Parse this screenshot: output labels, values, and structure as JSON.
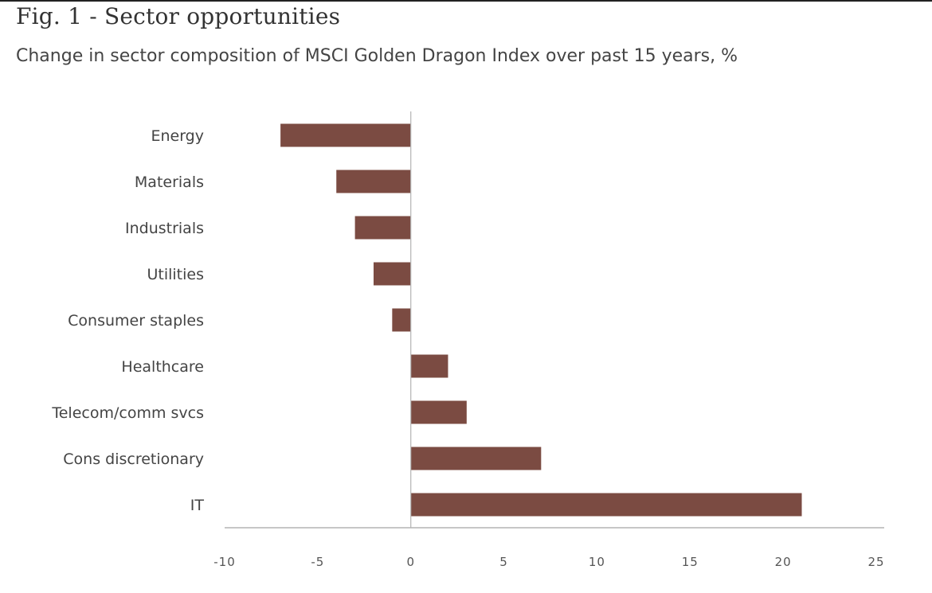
{
  "figure": {
    "title": "Fig. 1 - Sector opportunities",
    "subtitle": "Change in sector composition of MSCI Golden Dragon Index over past 15 years, %"
  },
  "colors": {
    "bar": "#7b4b42",
    "axis": "#b3b3b3",
    "text": "#444444"
  },
  "chart_data": {
    "type": "bar",
    "orientation": "horizontal",
    "categories": [
      "Energy",
      "Materials",
      "Industrials",
      "Utilities",
      "Consumer staples",
      "Healthcare",
      "Telecom/comm svcs",
      "Cons discretionary",
      "IT"
    ],
    "values": [
      -7,
      -4,
      -3,
      -2,
      -1,
      2,
      3,
      7,
      21
    ],
    "xlim": [
      -10,
      25
    ],
    "xticks": [
      -10,
      -5,
      0,
      5,
      10,
      15,
      20,
      25
    ],
    "title": "Fig. 1 - Sector opportunities",
    "subtitle": "Change in sector composition of MSCI Golden Dragon Index over past 15 years, %",
    "xlabel": "",
    "ylabel": "",
    "grid": false,
    "legend": "none"
  }
}
